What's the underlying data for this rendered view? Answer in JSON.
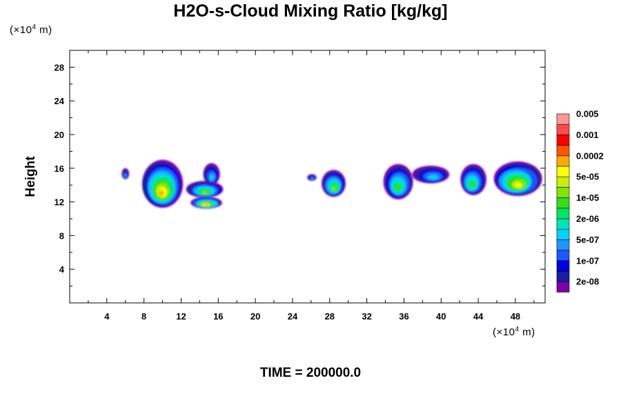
{
  "title": "H2O-s-Cloud Mixing Ratio [kg/kg]",
  "time_label": "TIME = 200000.0",
  "y_unit": {
    "prefix": "(×10",
    "exp": "4",
    "suffix": " m)"
  },
  "x_unit": {
    "prefix": "(×10",
    "exp": "4",
    "suffix": " m)"
  },
  "chart_data": {
    "type": "heatmap",
    "title": "H2O-s-Cloud Mixing Ratio [kg/kg]",
    "xlabel": "",
    "ylabel": "Height",
    "xlim": [
      0,
      51.2
    ],
    "ylim": [
      0,
      30
    ],
    "x_ticks": [
      4,
      8,
      12,
      16,
      20,
      24,
      28,
      32,
      36,
      40,
      44,
      48
    ],
    "y_ticks": [
      4,
      8,
      12,
      16,
      20,
      24,
      28
    ],
    "grid": false,
    "colorbar": {
      "placement": "right",
      "colors": [
        "#7b00a8",
        "#1a1ea0",
        "#0000e6",
        "#1e56ff",
        "#1e96ff",
        "#00d2ff",
        "#00e6b4",
        "#00e664",
        "#32dc1e",
        "#82e600",
        "#c8f000",
        "#ffff00",
        "#ffaa00",
        "#ff5500",
        "#ff0000",
        "#ff4b4b",
        "#ff9696"
      ],
      "labels": [
        "2e-08",
        "1e-07",
        "5e-07",
        "2e-06",
        "1e-05",
        "5e-05",
        "0.0002",
        "0.001",
        "0.005"
      ],
      "label_levels": [
        1,
        3,
        5,
        7,
        9,
        11,
        13,
        15,
        17
      ]
    },
    "clouds": [
      {
        "x": [
          5.6,
          6.4
        ],
        "y": [
          14.7,
          16.0
        ],
        "max": 5
      },
      {
        "x": [
          7.8,
          12.2
        ],
        "y": [
          11.3,
          17.0
        ],
        "max": 13
      },
      {
        "x": [
          13.0,
          16.4
        ],
        "y": [
          11.2,
          12.6
        ],
        "max": 13
      },
      {
        "x": [
          12.6,
          16.6
        ],
        "y": [
          12.5,
          14.5
        ],
        "max": 10
      },
      {
        "x": [
          14.4,
          16.2
        ],
        "y": [
          14.0,
          16.6
        ],
        "max": 6
      },
      {
        "x": [
          25.6,
          26.6
        ],
        "y": [
          14.5,
          15.3
        ],
        "max": 5
      },
      {
        "x": [
          27.2,
          29.8
        ],
        "y": [
          12.6,
          15.8
        ],
        "max": 10
      },
      {
        "x": [
          33.8,
          37.0
        ],
        "y": [
          12.3,
          16.5
        ],
        "max": 9
      },
      {
        "x": [
          37.0,
          41.0
        ],
        "y": [
          14.2,
          16.3
        ],
        "max": 6
      },
      {
        "x": [
          42.0,
          44.8
        ],
        "y": [
          12.8,
          16.5
        ],
        "max": 9
      },
      {
        "x": [
          45.6,
          50.8
        ],
        "y": [
          12.7,
          16.8
        ],
        "max": 12
      }
    ]
  }
}
